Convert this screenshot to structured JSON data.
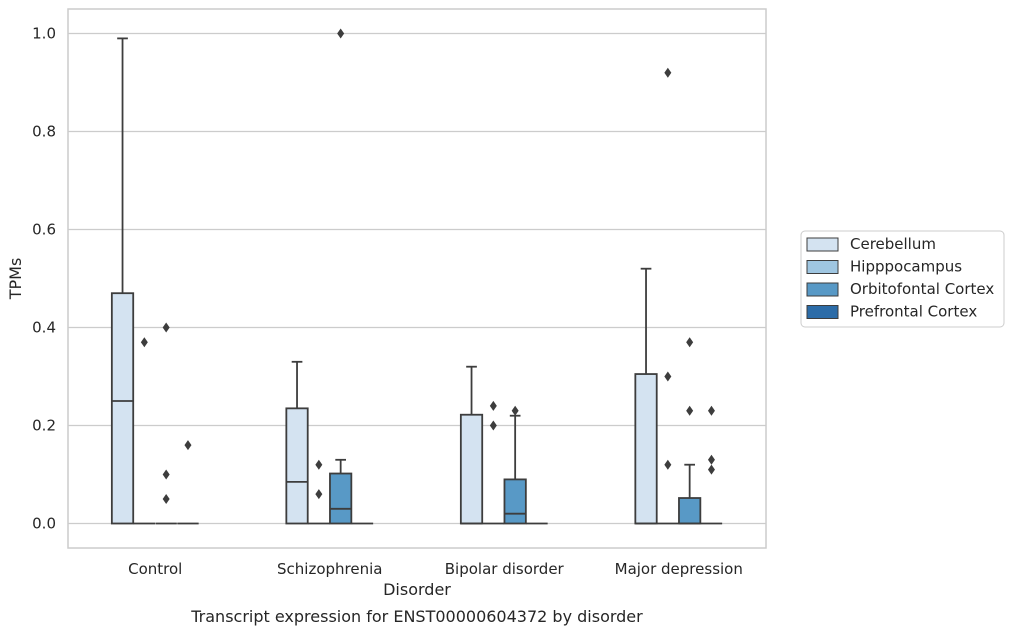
{
  "chart_data": {
    "type": "boxplot",
    "title": "Transcript expression for ENST00000604372 by disorder",
    "xlabel": "Disorder",
    "ylabel": "TPMs",
    "ylim": [
      -0.05,
      1.05
    ],
    "yticks": [
      0.0,
      0.2,
      0.4,
      0.6,
      0.8,
      1.0
    ],
    "ytick_labels": [
      "0.0",
      "0.2",
      "0.4",
      "0.6",
      "0.8",
      "1.0"
    ],
    "grid": "horizontal",
    "legend_position": "right, outside plot",
    "categories": [
      "Control",
      "Schizophrenia",
      "Bipolar disorder",
      "Major depression"
    ],
    "series": [
      {
        "name": "Cerebellum",
        "color": "#d4e3f1",
        "boxes": [
          {
            "q1": 0.0,
            "median": 0.25,
            "q3": 0.47,
            "whislo": 0.0,
            "whishi": 0.99,
            "fliers": []
          },
          {
            "q1": 0.0,
            "median": 0.085,
            "q3": 0.235,
            "whislo": 0.0,
            "whishi": 0.33,
            "fliers": []
          },
          {
            "q1": 0.0,
            "median": 0.0,
            "q3": 0.222,
            "whislo": 0.0,
            "whishi": 0.32,
            "fliers": []
          },
          {
            "q1": 0.0,
            "median": 0.0,
            "q3": 0.305,
            "whislo": 0.0,
            "whishi": 0.52,
            "fliers": []
          }
        ]
      },
      {
        "name": "Hipppocampus",
        "color": "#9fc6e1",
        "boxes": [
          {
            "q1": 0.0,
            "median": 0.0,
            "q3": 0.0,
            "whislo": 0.0,
            "whishi": 0.0,
            "fliers": [
              0.37
            ]
          },
          {
            "q1": 0.0,
            "median": 0.0,
            "q3": 0.0,
            "whislo": 0.0,
            "whishi": 0.0,
            "fliers": [
              0.12,
              0.06
            ]
          },
          {
            "q1": 0.0,
            "median": 0.0,
            "q3": 0.0,
            "whislo": 0.0,
            "whishi": 0.0,
            "fliers": [
              0.24,
              0.2
            ]
          },
          {
            "q1": 0.0,
            "median": 0.0,
            "q3": 0.0,
            "whislo": 0.0,
            "whishi": 0.0,
            "fliers": [
              0.92,
              0.3,
              0.12
            ]
          }
        ]
      },
      {
        "name": "Orbitofontal Cortex",
        "color": "#5899c6",
        "boxes": [
          {
            "q1": 0.0,
            "median": 0.0,
            "q3": 0.0,
            "whislo": 0.0,
            "whishi": 0.0,
            "fliers": [
              0.4,
              0.1,
              0.05
            ]
          },
          {
            "q1": 0.0,
            "median": 0.03,
            "q3": 0.102,
            "whislo": 0.0,
            "whishi": 0.13,
            "fliers": [
              1.0
            ]
          },
          {
            "q1": 0.0,
            "median": 0.02,
            "q3": 0.09,
            "whislo": 0.0,
            "whishi": 0.22,
            "fliers": [
              0.23
            ]
          },
          {
            "q1": 0.0,
            "median": 0.0,
            "q3": 0.052,
            "whislo": 0.0,
            "whishi": 0.12,
            "fliers": [
              0.37,
              0.23
            ]
          }
        ]
      },
      {
        "name": "Prefrontal Cortex",
        "color": "#2c6ca8",
        "boxes": [
          {
            "q1": 0.0,
            "median": 0.0,
            "q3": 0.0,
            "whislo": 0.0,
            "whishi": 0.0,
            "fliers": [
              0.16
            ]
          },
          {
            "q1": 0.0,
            "median": 0.0,
            "q3": 0.0,
            "whislo": 0.0,
            "whishi": 0.0,
            "fliers": []
          },
          {
            "q1": 0.0,
            "median": 0.0,
            "q3": 0.0,
            "whislo": 0.0,
            "whishi": 0.0,
            "fliers": []
          },
          {
            "q1": 0.0,
            "median": 0.0,
            "q3": 0.0,
            "whislo": 0.0,
            "whishi": 0.0,
            "fliers": [
              0.23,
              0.13,
              0.11
            ]
          }
        ]
      }
    ]
  }
}
